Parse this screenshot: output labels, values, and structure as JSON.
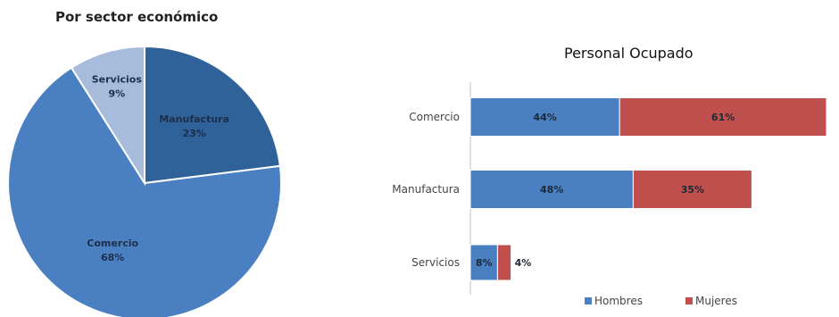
{
  "chart_data": [
    {
      "type": "pie",
      "title": "Por sector económico",
      "slices": [
        {
          "name": "Manufactura",
          "value": 23,
          "label": "23%",
          "color": "#2e6299"
        },
        {
          "name": "Comercio",
          "value": 68,
          "label": "68%",
          "color": "#4a80c1"
        },
        {
          "name": "Servicios",
          "value": 9,
          "label": "9%",
          "color": "#a7bcda"
        }
      ]
    },
    {
      "type": "bar",
      "orientation": "horizontal",
      "stacked": true,
      "title": "Personal Ocupado",
      "categories": [
        "Comercio",
        "Manufactura",
        "Servicios"
      ],
      "series": [
        {
          "name": "Hombres",
          "values": [
            44,
            48,
            8
          ],
          "labels": [
            "44%",
            "48%",
            "8%"
          ],
          "color": "#4a80c1"
        },
        {
          "name": "Mujeres",
          "values": [
            61,
            35,
            4
          ],
          "labels": [
            "61%",
            "35%",
            "4%"
          ],
          "color": "#c0504d"
        }
      ],
      "legend_position": "bottom-right",
      "grid": false
    }
  ]
}
